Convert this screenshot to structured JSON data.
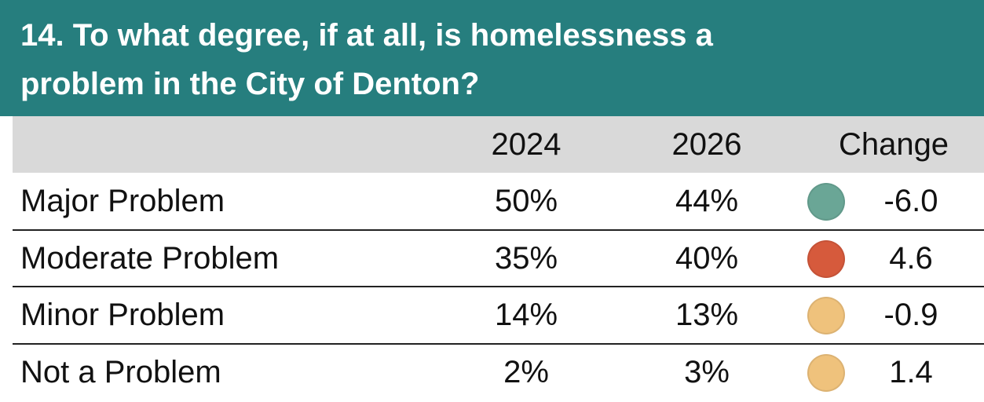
{
  "header": {
    "title_lines": [
      "14. To what degree, if at all, is homelessness a",
      "problem in the City of Denton?"
    ]
  },
  "table": {
    "columns": [
      "2024",
      "2026",
      "Change"
    ],
    "rows": [
      {
        "label": "Major Problem",
        "values": [
          50,
          44
        ],
        "value_labels": [
          "50%",
          "44%"
        ],
        "change": -6.0,
        "change_label": "-6.0",
        "color": "#6aa696"
      },
      {
        "label": "Moderate Problem",
        "values": [
          35,
          40
        ],
        "value_labels": [
          "35%",
          "40%"
        ],
        "change": 4.6,
        "change_label": "4.6",
        "color": "#d65a3c"
      },
      {
        "label": "Minor Problem",
        "values": [
          14,
          13
        ],
        "value_labels": [
          "14%",
          "13%"
        ],
        "change": -0.9,
        "change_label": "-0.9",
        "color": "#efc27c"
      },
      {
        "label": "Not a Problem",
        "values": [
          2,
          3
        ],
        "value_labels": [
          "2%",
          "3%"
        ],
        "change": 1.4,
        "change_label": "1.4",
        "color": "#efc27c"
      }
    ]
  }
}
